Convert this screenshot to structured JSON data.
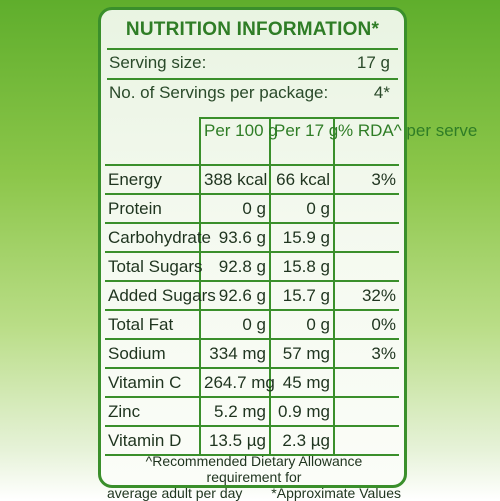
{
  "title": "NUTRITION INFORMATION*",
  "serving": {
    "size_label": "Serving size:",
    "size_value": "17 g",
    "count_label": "No. of Servings per package:",
    "count_value": "4*"
  },
  "table": {
    "columns": [
      "Per 100 g",
      "Per 17 g",
      "% RDA^ per serve"
    ],
    "rows": [
      {
        "name": "Energy",
        "per100": "388 kcal",
        "per17": "66 kcal",
        "rda": "3%"
      },
      {
        "name": "Protein",
        "per100": "0 g",
        "per17": "0 g",
        "rda": ""
      },
      {
        "name": "Carbohydrate",
        "per100": "93.6 g",
        "per17": "15.9 g",
        "rda": ""
      },
      {
        "name": "Total Sugars",
        "per100": "92.8 g",
        "per17": "15.8 g",
        "rda": ""
      },
      {
        "name": "Added Sugars",
        "per100": "92.6 g",
        "per17": "15.7 g",
        "rda": "32%"
      },
      {
        "name": "Total Fat",
        "per100": "0 g",
        "per17": "0 g",
        "rda": "0%"
      },
      {
        "name": "Sodium",
        "per100": "334 mg",
        "per17": "57 mg",
        "rda": "3%"
      },
      {
        "name": "Vitamin C",
        "per100": "264.7 mg",
        "per17": "45 mg",
        "rda": ""
      },
      {
        "name": "Zinc",
        "per100": "5.2 mg",
        "per17": "0.9 mg",
        "rda": ""
      },
      {
        "name": "Vitamin D",
        "per100": "13.5 µg",
        "per17": "2.3 µg",
        "rda": ""
      }
    ]
  },
  "footer": {
    "line1": "^Recommended Dietary Allowance requirement for",
    "line2": "average adult per day",
    "line3": "*Approximate Values"
  },
  "colors": {
    "border": "#3a8f2b",
    "title": "#2f7d26",
    "panel": "#f4f9ef",
    "background": "#8cc64a"
  }
}
